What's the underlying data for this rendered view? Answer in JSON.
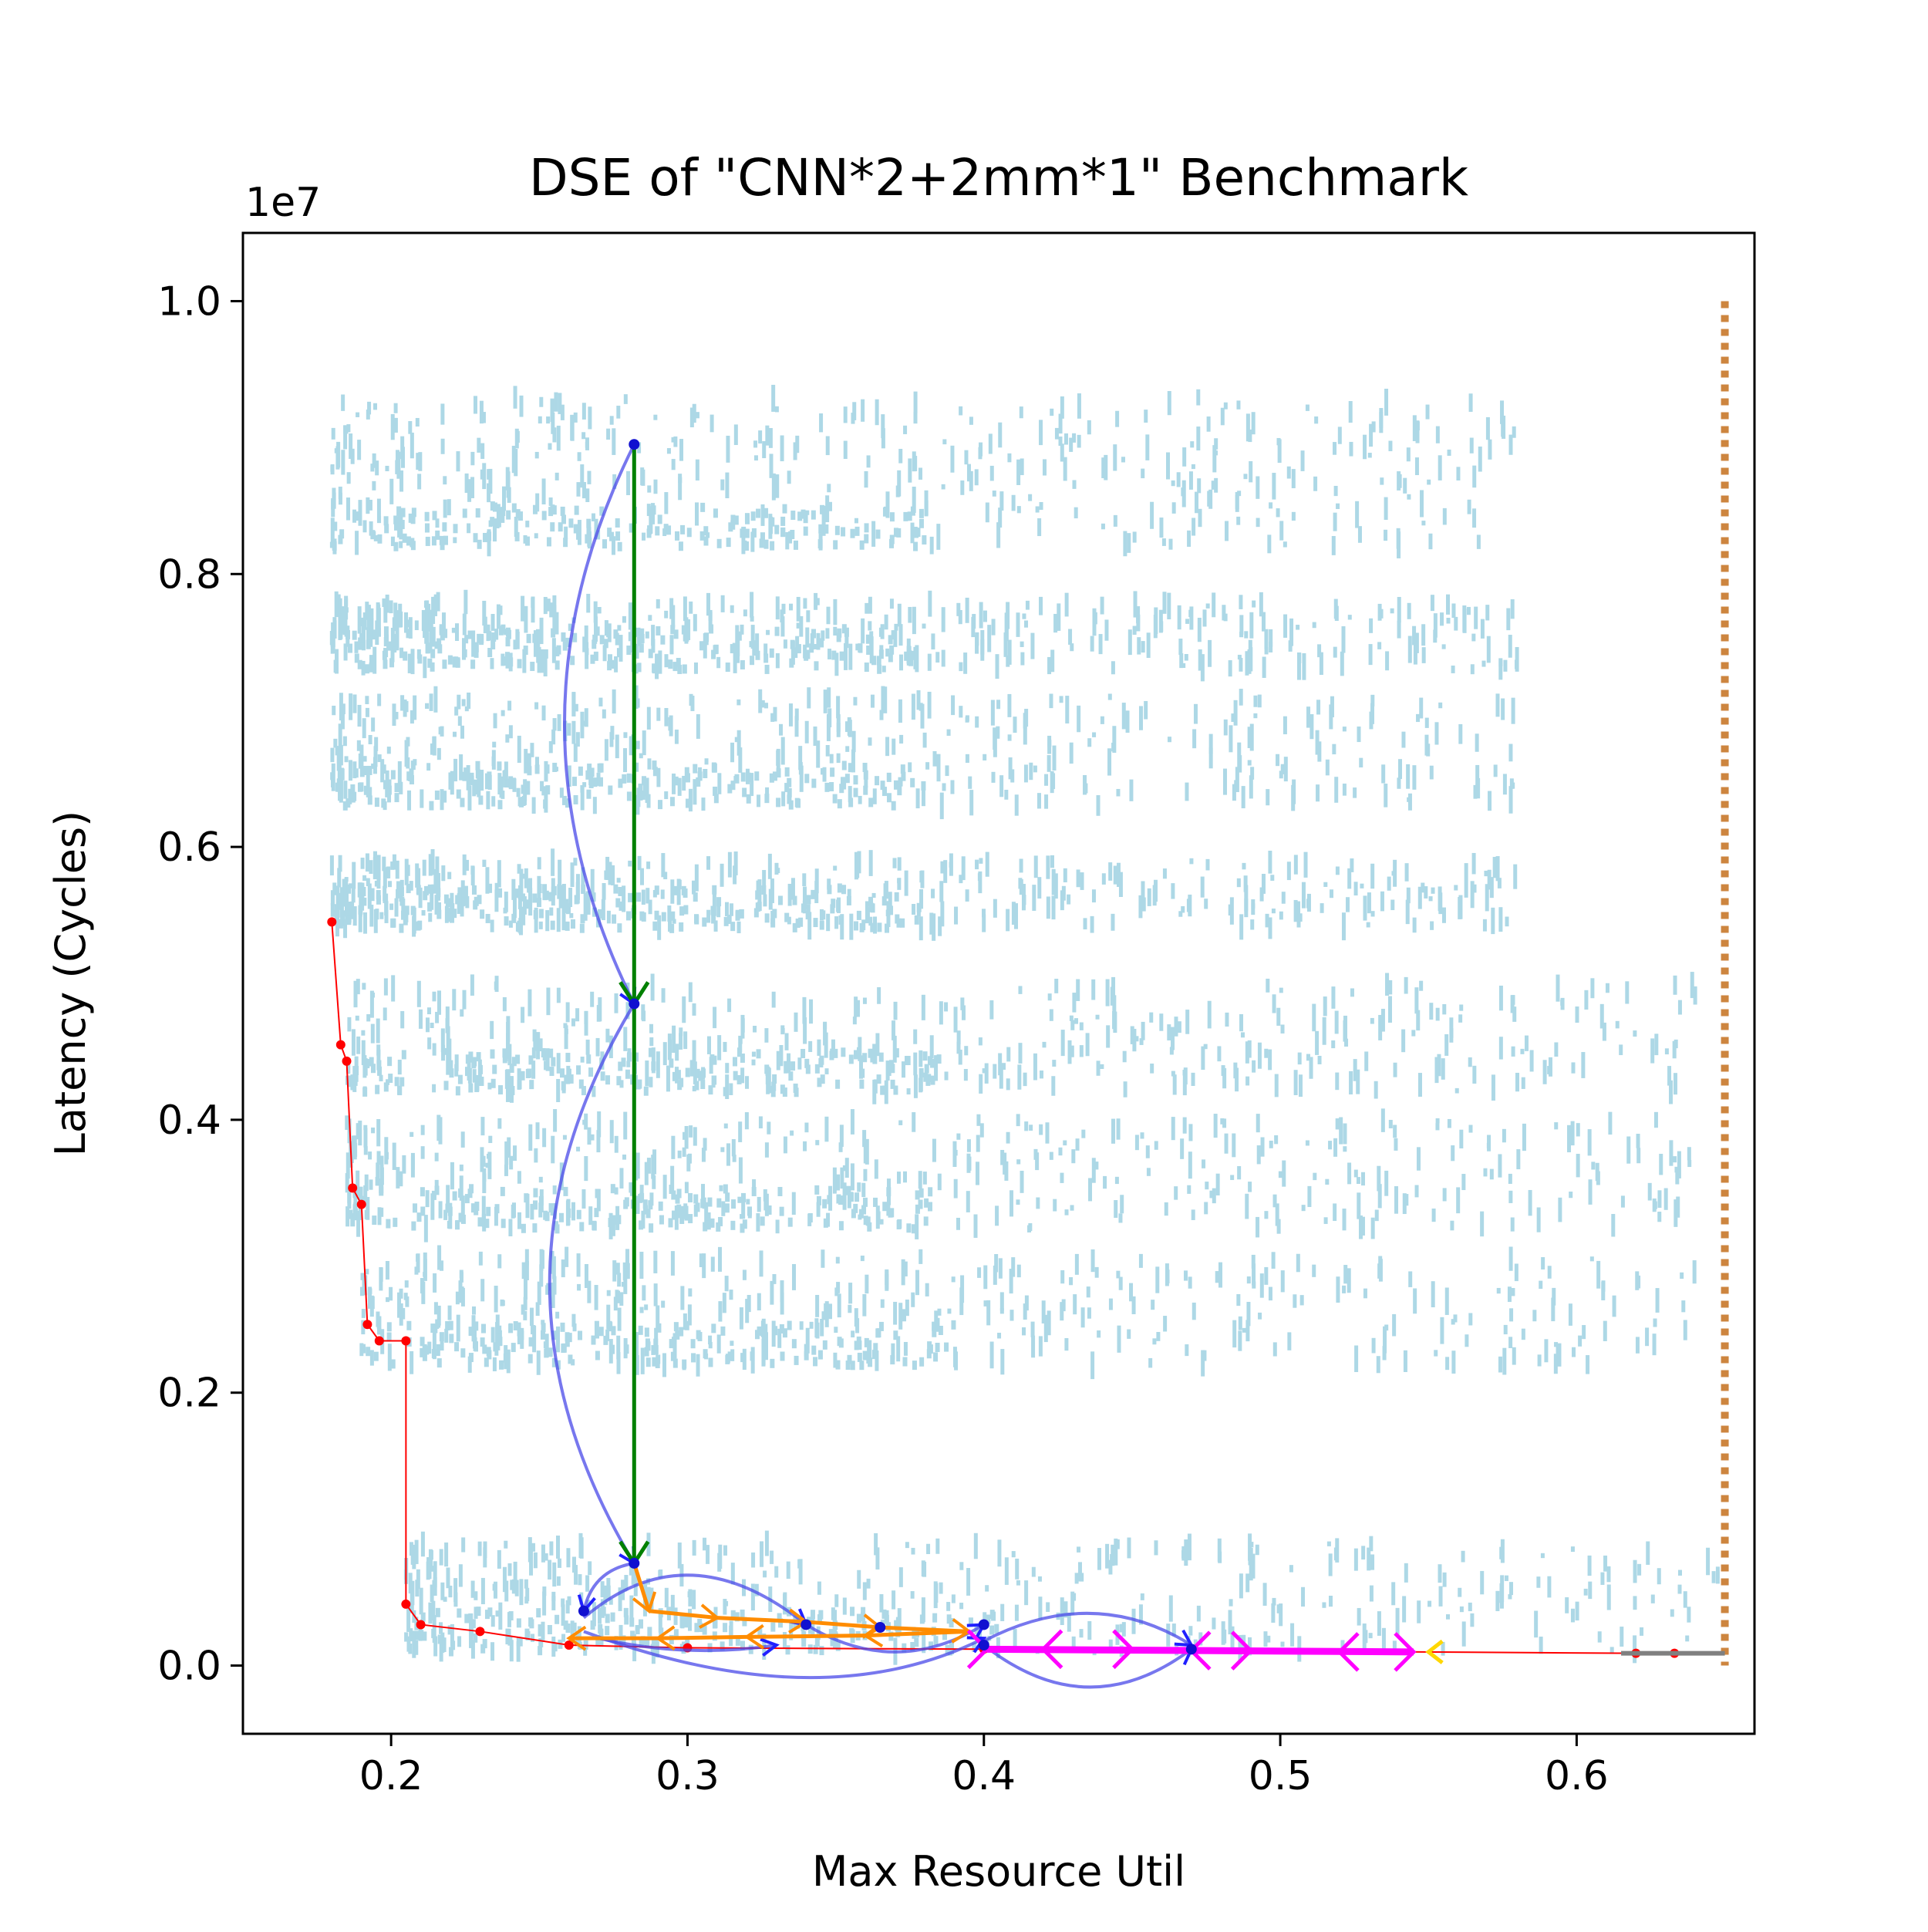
{
  "chart_data": {
    "type": "scatter",
    "title": "DSE of \"CNN*2+2mm*1\" Benchmark",
    "xlabel": "Max Resource Util",
    "ylabel": "Latency (Cycles)",
    "y_offset_label": "1e7",
    "xlim": [
      0.15,
      0.66
    ],
    "ylim": [
      -0.05,
      1.05
    ],
    "x_ticks": [
      {
        "value": 0.2,
        "label": "0.2"
      },
      {
        "value": 0.3,
        "label": "0.3"
      },
      {
        "value": 0.4,
        "label": "0.4"
      },
      {
        "value": 0.5,
        "label": "0.5"
      },
      {
        "value": 0.6,
        "label": "0.6"
      }
    ],
    "y_ticks": [
      {
        "value": 0.0,
        "label": "0.0"
      },
      {
        "value": 0.2,
        "label": "0.2"
      },
      {
        "value": 0.4,
        "label": "0.4"
      },
      {
        "value": 0.6,
        "label": "0.6"
      },
      {
        "value": 0.8,
        "label": "0.8"
      },
      {
        "value": 1.0,
        "label": "1.0"
      }
    ],
    "grid": false,
    "legend": "none",
    "colors": {
      "design_points": "#add8e6",
      "pareto": "#ff0000",
      "search_path": "#008000",
      "blue_arcs": "#4a4ae8",
      "orange_path": "#ff8c00",
      "magenta_path": "#ff00ff",
      "limit_line": "#cd853f",
      "gray_tail": "#808080"
    },
    "limit_line": {
      "x": 0.65,
      "y_range": [
        0.0,
        1.0
      ]
    },
    "design_point_bands": [
      {
        "y_min": 0.82,
        "y_max": 0.93,
        "x_min": 0.18,
        "x_max": 0.58
      },
      {
        "y_min": 0.73,
        "y_max": 0.78,
        "x_min": 0.18,
        "x_max": 0.58
      },
      {
        "y_min": 0.63,
        "y_max": 0.71,
        "x_min": 0.18,
        "x_max": 0.58
      },
      {
        "y_min": 0.54,
        "y_max": 0.59,
        "x_min": 0.18,
        "x_max": 0.58
      },
      {
        "y_min": 0.42,
        "y_max": 0.5,
        "x_min": 0.185,
        "x_max": 0.64
      },
      {
        "y_min": 0.32,
        "y_max": 0.4,
        "x_min": 0.185,
        "x_max": 0.64
      },
      {
        "y_min": 0.22,
        "y_max": 0.3,
        "x_min": 0.19,
        "x_max": 0.64
      },
      {
        "y_min": 0.01,
        "y_max": 0.09,
        "x_min": 0.205,
        "x_max": 0.65
      }
    ],
    "pareto_front": [
      {
        "x": 0.18,
        "y": 0.545
      },
      {
        "x": 0.183,
        "y": 0.455
      },
      {
        "x": 0.185,
        "y": 0.443
      },
      {
        "x": 0.187,
        "y": 0.35
      },
      {
        "x": 0.19,
        "y": 0.338
      },
      {
        "x": 0.192,
        "y": 0.25
      },
      {
        "x": 0.196,
        "y": 0.238
      },
      {
        "x": 0.205,
        "y": 0.238
      },
      {
        "x": 0.205,
        "y": 0.045
      },
      {
        "x": 0.21,
        "y": 0.03
      },
      {
        "x": 0.23,
        "y": 0.025
      },
      {
        "x": 0.26,
        "y": 0.015
      },
      {
        "x": 0.3,
        "y": 0.013
      },
      {
        "x": 0.4,
        "y": 0.012
      },
      {
        "x": 0.62,
        "y": 0.009
      },
      {
        "x": 0.633,
        "y": 0.009
      }
    ],
    "search_path": [
      {
        "x": 0.282,
        "y": 0.895
      },
      {
        "x": 0.282,
        "y": 0.485
      },
      {
        "x": 0.282,
        "y": 0.075
      }
    ],
    "blue_arcs": [
      {
        "x1": 0.282,
        "y1": 0.895,
        "x2": 0.282,
        "y2": 0.485,
        "cx": 0.235,
        "cy": 0.69
      },
      {
        "x1": 0.282,
        "y1": 0.485,
        "x2": 0.282,
        "y2": 0.075,
        "cx": 0.225,
        "cy": 0.28
      },
      {
        "x1": 0.282,
        "y1": 0.075,
        "x2": 0.265,
        "y2": 0.04,
        "cx": 0.268,
        "cy": 0.07
      },
      {
        "x1": 0.265,
        "y1": 0.035,
        "x2": 0.34,
        "y2": 0.03,
        "cx": 0.3,
        "cy": 0.1
      },
      {
        "x1": 0.34,
        "y1": 0.03,
        "x2": 0.4,
        "y2": 0.03,
        "cx": 0.37,
        "cy": -0.01
      },
      {
        "x1": 0.265,
        "y1": 0.025,
        "x2": 0.4,
        "y2": 0.02,
        "cx": 0.345,
        "cy": -0.04
      },
      {
        "x1": 0.27,
        "y1": 0.02,
        "x2": 0.33,
        "y2": 0.015,
        "cx": 0.3,
        "cy": 0.005
      },
      {
        "x1": 0.4,
        "y1": 0.015,
        "x2": 0.47,
        "y2": 0.012,
        "cx": 0.435,
        "cy": -0.045
      },
      {
        "x1": 0.4,
        "y1": 0.018,
        "x2": 0.47,
        "y2": 0.015,
        "cx": 0.437,
        "cy": 0.06
      }
    ],
    "blue_markers": [
      {
        "x": 0.282,
        "y": 0.895
      },
      {
        "x": 0.282,
        "y": 0.485
      },
      {
        "x": 0.282,
        "y": 0.075
      },
      {
        "x": 0.265,
        "y": 0.04
      },
      {
        "x": 0.34,
        "y": 0.03
      },
      {
        "x": 0.365,
        "y": 0.028
      },
      {
        "x": 0.4,
        "y": 0.03
      },
      {
        "x": 0.4,
        "y": 0.015
      },
      {
        "x": 0.47,
        "y": 0.012
      }
    ],
    "orange_path": [
      {
        "x": 0.282,
        "y": 0.075
      },
      {
        "x": 0.287,
        "y": 0.04
      },
      {
        "x": 0.31,
        "y": 0.035
      },
      {
        "x": 0.34,
        "y": 0.032
      },
      {
        "x": 0.365,
        "y": 0.028
      },
      {
        "x": 0.395,
        "y": 0.025
      },
      {
        "x": 0.36,
        "y": 0.022
      },
      {
        "x": 0.32,
        "y": 0.021
      },
      {
        "x": 0.29,
        "y": 0.02
      },
      {
        "x": 0.26,
        "y": 0.02
      }
    ],
    "magenta_path": [
      {
        "x": 0.401,
        "y": 0.012
      },
      {
        "x": 0.42,
        "y": 0.012
      },
      {
        "x": 0.45,
        "y": 0.012
      },
      {
        "x": 0.47,
        "y": 0.011
      },
      {
        "x": 0.49,
        "y": 0.011
      },
      {
        "x": 0.52,
        "y": 0.01
      },
      {
        "x": 0.545,
        "y": 0.01
      }
    ],
    "end_marker": {
      "x": 0.55,
      "y": 0.01
    },
    "gray_tail": [
      {
        "x": 0.615,
        "y": 0.009
      },
      {
        "x": 0.65,
        "y": 0.009
      }
    ]
  }
}
